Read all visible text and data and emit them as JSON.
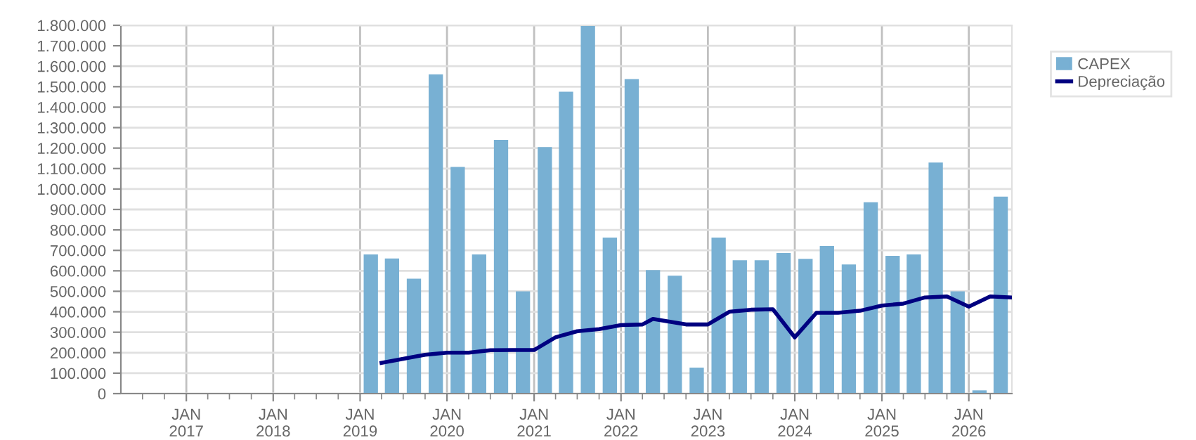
{
  "chart_data": {
    "type": "bar",
    "x": [
      "2019-02-15",
      "2019-05-15",
      "2019-08-15",
      "2019-11-15",
      "2020-02-15",
      "2020-05-15",
      "2020-08-15",
      "2020-11-15",
      "2021-02-15",
      "2021-05-15",
      "2021-08-15",
      "2021-11-15",
      "2022-02-15",
      "2022-05-15",
      "2022-08-15",
      "2022-11-15",
      "2023-02-15",
      "2023-05-15",
      "2023-08-15",
      "2023-11-15",
      "2024-02-15",
      "2024-05-15",
      "2024-08-15",
      "2024-11-15",
      "2025-02-15",
      "2025-05-15",
      "2025-08-15",
      "2025-11-15",
      "2026-02-15",
      "2026-05-15"
    ],
    "series": [
      {
        "name": "CAPEX",
        "color": "#78b0d3",
        "values": [
          680000,
          660000,
          562000,
          1560000,
          1108000,
          680000,
          1240000,
          500000,
          1205000,
          1475000,
          1800000,
          763000,
          1537000,
          604000,
          576000,
          127000,
          763000,
          652000,
          652000,
          687000,
          659000,
          721000,
          631000,
          935000,
          673000,
          680000,
          1129000,
          500000,
          16000,
          963000
        ]
      },
      {
        "name": "Depreciação",
        "type": "line",
        "color": "#000080",
        "x": [
          "2019-04-01",
          "2019-07-01",
          "2019-10-01",
          "2020-01-01",
          "2020-04-01",
          "2020-07-01",
          "2020-10-01",
          "2021-01-01",
          "2021-04-01",
          "2021-07-01",
          "2021-10-01",
          "2022-01-01",
          "2022-04-01",
          "2022-05-15",
          "2022-10-01",
          "2023-01-01",
          "2023-04-01",
          "2023-07-01",
          "2023-10-01",
          "2024-01-01",
          "2024-04-01",
          "2024-07-01",
          "2024-10-01",
          "2025-01-01",
          "2025-04-01",
          "2025-07-01",
          "2025-10-01",
          "2026-01-01",
          "2026-04-01",
          "2026-07-01"
        ],
        "values": [
          150000,
          170000,
          190000,
          200000,
          200000,
          212000,
          213000,
          213000,
          275000,
          305000,
          315000,
          335000,
          338000,
          365000,
          338000,
          338000,
          400000,
          410000,
          412000,
          275000,
          395000,
          395000,
          405000,
          430000,
          440000,
          470000,
          475000,
          425000,
          475000,
          470000
        ]
      }
    ],
    "xlim": [
      "2016-04-01",
      "2026-07-01"
    ],
    "xticks": [
      {
        "value": "2016-07-01",
        "label": null
      },
      {
        "value": "2016-10-01",
        "label": null
      },
      {
        "value": "2017-01-01",
        "label": "JAN\n2017"
      },
      {
        "value": "2017-04-01",
        "label": null
      },
      {
        "value": "2017-07-01",
        "label": null
      },
      {
        "value": "2017-10-01",
        "label": null
      },
      {
        "value": "2018-01-01",
        "label": "JAN\n2018"
      },
      {
        "value": "2018-04-01",
        "label": null
      },
      {
        "value": "2018-07-01",
        "label": null
      },
      {
        "value": "2018-10-01",
        "label": null
      },
      {
        "value": "2019-01-01",
        "label": "JAN\n2019"
      },
      {
        "value": "2019-04-01",
        "label": null
      },
      {
        "value": "2019-07-01",
        "label": null
      },
      {
        "value": "2019-10-01",
        "label": null
      },
      {
        "value": "2020-01-01",
        "label": "JAN\n2020"
      },
      {
        "value": "2020-04-01",
        "label": null
      },
      {
        "value": "2020-07-01",
        "label": null
      },
      {
        "value": "2020-10-01",
        "label": null
      },
      {
        "value": "2021-01-01",
        "label": "JAN\n2021"
      },
      {
        "value": "2021-04-01",
        "label": null
      },
      {
        "value": "2021-07-01",
        "label": null
      },
      {
        "value": "2021-10-01",
        "label": null
      },
      {
        "value": "2022-01-01",
        "label": "JAN\n2022"
      },
      {
        "value": "2022-04-01",
        "label": null
      },
      {
        "value": "2022-07-01",
        "label": null
      },
      {
        "value": "2022-10-01",
        "label": null
      },
      {
        "value": "2023-01-01",
        "label": "JAN\n2023"
      },
      {
        "value": "2023-04-01",
        "label": null
      },
      {
        "value": "2023-07-01",
        "label": null
      },
      {
        "value": "2023-10-01",
        "label": null
      },
      {
        "value": "2024-01-01",
        "label": "JAN\n2024"
      },
      {
        "value": "2024-04-01",
        "label": null
      },
      {
        "value": "2024-07-01",
        "label": null
      },
      {
        "value": "2024-10-01",
        "label": null
      },
      {
        "value": "2025-01-01",
        "label": "JAN\n2025"
      },
      {
        "value": "2025-04-01",
        "label": null
      },
      {
        "value": "2025-07-01",
        "label": null
      },
      {
        "value": "2025-10-01",
        "label": null
      },
      {
        "value": "2026-01-01",
        "label": "JAN\n2026"
      },
      {
        "value": "2026-04-01",
        "label": null
      }
    ],
    "ylim": [
      0,
      1800000
    ],
    "yticks": [
      {
        "value": 0,
        "label": "0"
      },
      {
        "value": 100000,
        "label": "100.000"
      },
      {
        "value": 200000,
        "label": "200.000"
      },
      {
        "value": 300000,
        "label": "300.000"
      },
      {
        "value": 400000,
        "label": "400.000"
      },
      {
        "value": 500000,
        "label": "500.000"
      },
      {
        "value": 600000,
        "label": "600.000"
      },
      {
        "value": 700000,
        "label": "700.000"
      },
      {
        "value": 800000,
        "label": "800.000"
      },
      {
        "value": 900000,
        "label": "900.000"
      },
      {
        "value": 1000000,
        "label": "1.000.000"
      },
      {
        "value": 1100000,
        "label": "1.100.000"
      },
      {
        "value": 1200000,
        "label": "1.200.000"
      },
      {
        "value": 1300000,
        "label": "1.300.000"
      },
      {
        "value": 1400000,
        "label": "1.400.000"
      },
      {
        "value": 1500000,
        "label": "1.500.000"
      },
      {
        "value": 1600000,
        "label": "1.600.000"
      },
      {
        "value": 1700000,
        "label": "1.700.000"
      },
      {
        "value": 1800000,
        "label": "1.800.000"
      }
    ],
    "grid": true,
    "legend": "top right",
    "marker": "none",
    "line_style": "solid"
  }
}
